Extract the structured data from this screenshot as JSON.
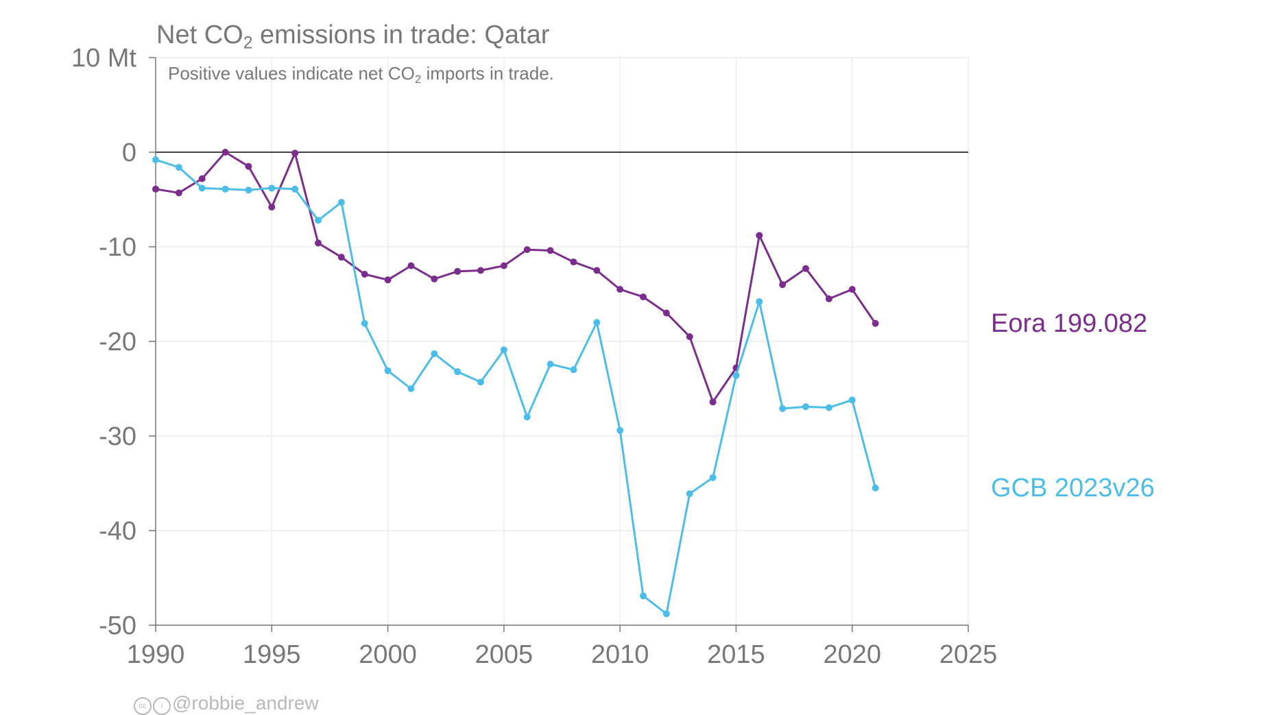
{
  "chart_data": {
    "type": "line",
    "title_parts": [
      "Net CO",
      "2",
      " emissions in trade: Qatar"
    ],
    "subtitle_parts": [
      "Positive values indicate net CO",
      "2",
      " imports in trade."
    ],
    "xlim": [
      1990,
      2025
    ],
    "ylim": [
      -50,
      10
    ],
    "x_ticks": [
      "1990",
      "1995",
      "2000",
      "2005",
      "2010",
      "2015",
      "2020",
      "2025"
    ],
    "y_ticks": [
      "10 Mt",
      "0",
      "-10",
      "-20",
      "-30",
      "-40",
      "-50"
    ],
    "grid": true,
    "legend": "right, direct labels",
    "x": [
      1990,
      1991,
      1992,
      1993,
      1994,
      1995,
      1996,
      1997,
      1998,
      1999,
      2000,
      2001,
      2002,
      2003,
      2004,
      2005,
      2006,
      2007,
      2008,
      2009,
      2010,
      2011,
      2012,
      2013,
      2014,
      2015,
      2016,
      2017,
      2018,
      2019,
      2020,
      2021
    ],
    "series": [
      {
        "name": "Eora 199.082",
        "color": "#7b2d8e",
        "values": [
          -3.9,
          -4.3,
          -2.8,
          0.0,
          -1.5,
          -5.8,
          -0.1,
          -9.6,
          -11.1,
          -12.9,
          -13.5,
          -12.0,
          -13.4,
          -12.6,
          -12.5,
          -12.0,
          -10.3,
          -10.4,
          -11.6,
          -12.5,
          -14.5,
          -15.3,
          -17.0,
          -19.5,
          -26.4,
          -22.8,
          -8.8,
          -14.0,
          -12.3,
          -15.5,
          -14.5,
          -18.1
        ]
      },
      {
        "name": "GCB 2023v26",
        "color": "#4cbde9",
        "values": [
          -0.8,
          -1.6,
          -3.8,
          -3.9,
          -4.0,
          -3.8,
          -3.9,
          -7.2,
          -5.3,
          -18.1,
          -23.1,
          -25.0,
          -21.3,
          -23.2,
          -24.3,
          -20.9,
          -28.0,
          -22.4,
          -23.0,
          -18.0,
          -29.4,
          -46.9,
          -48.8,
          -36.1,
          -34.4,
          -23.6,
          -15.8,
          -27.1,
          -26.9,
          -27.0,
          -26.2,
          -35.5
        ]
      }
    ],
    "credit": "@robbie_andrew",
    "credit_icons": [
      "cc-icon",
      "by-icon"
    ]
  }
}
